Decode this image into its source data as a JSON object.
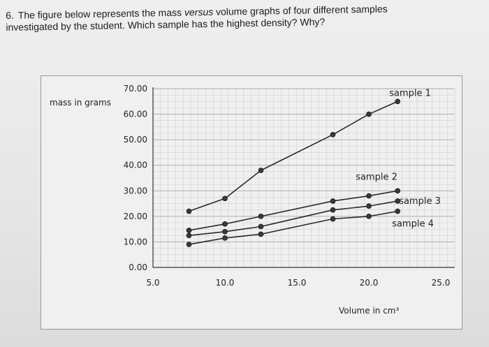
{
  "question": {
    "number": "6.",
    "line1_before": "The figure below represents the mass ",
    "line1_em": "versus",
    "line1_after": " volume graphs of four different samples",
    "line2": "investigated by the student. Which sample has the highest density? Why?"
  },
  "chart_data": {
    "type": "line",
    "xlabel": "Volume in cm³",
    "ylabel": "mass in grams",
    "xlim": [
      5,
      25
    ],
    "ylim": [
      0,
      70
    ],
    "x_ticks": [
      "5.0",
      "10.0",
      "15.0",
      "20.0",
      "25.0"
    ],
    "y_ticks": [
      "0.00",
      "10.00",
      "20.00",
      "30.00",
      "40.00",
      "50.00",
      "60.00",
      "70.00"
    ],
    "grid": true,
    "series": [
      {
        "name": "sample 1",
        "x": [
          7.5,
          10,
          12.5,
          17.5,
          20,
          22
        ],
        "y": [
          22,
          27,
          38,
          52,
          60,
          65
        ]
      },
      {
        "name": "sample 2",
        "x": [
          7.5,
          10,
          12.5,
          17.5,
          20,
          22
        ],
        "y": [
          14.5,
          17,
          20,
          26,
          28,
          30
        ]
      },
      {
        "name": "sample 3",
        "x": [
          7.5,
          10,
          12.5,
          17.5,
          20,
          22
        ],
        "y": [
          12.5,
          14,
          16,
          22.5,
          24,
          26
        ]
      },
      {
        "name": "sample 4",
        "x": [
          7.5,
          10,
          12.5,
          17.5,
          20,
          22
        ],
        "y": [
          9,
          11.5,
          13,
          19,
          20,
          22
        ]
      }
    ]
  }
}
